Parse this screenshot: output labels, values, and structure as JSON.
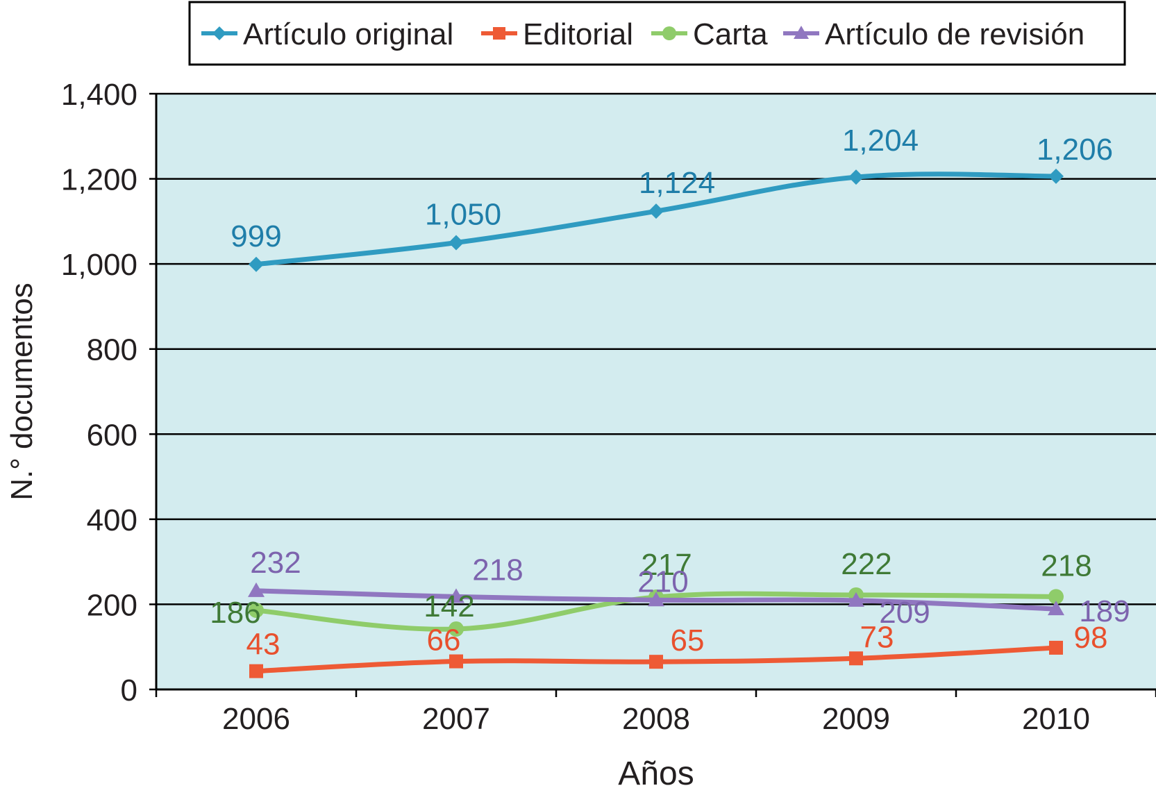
{
  "chart_data": {
    "type": "line",
    "title": "",
    "xlabel": "Años",
    "ylabel": "N.° documentos",
    "categories": [
      "2006",
      "2007",
      "2008",
      "2009",
      "2010"
    ],
    "ylim": [
      0,
      1400
    ],
    "yticks": [
      0,
      200,
      400,
      600,
      800,
      1000,
      1200,
      1400
    ],
    "ytick_labels": [
      "0",
      "200",
      "400",
      "600",
      "800",
      "1,000",
      "1,200",
      "1,400"
    ],
    "grid": true,
    "legend_position": "top",
    "plot_background": "#d3ecef",
    "series": [
      {
        "name": "Artículo original",
        "values": [
          999,
          1050,
          1124,
          1204,
          1206
        ],
        "labels": [
          "999",
          "1,050",
          "1,124",
          "1,204",
          "1,206"
        ],
        "color": "#2f9bc1",
        "label_color": "#1f7ea9",
        "marker": "diamond"
      },
      {
        "name": "Editorial",
        "values": [
          43,
          66,
          65,
          73,
          98
        ],
        "labels": [
          "43",
          "66",
          "65",
          "73",
          "98"
        ],
        "color": "#ee5a35",
        "label_color": "#e8502d",
        "marker": "square"
      },
      {
        "name": "Carta",
        "values": [
          186,
          142,
          217,
          222,
          218
        ],
        "labels": [
          "186",
          "142",
          "217",
          "222",
          "218"
        ],
        "color": "#8fcc6a",
        "label_color": "#3f7a36",
        "marker": "circle"
      },
      {
        "name": "Artículo de revisión",
        "values": [
          232,
          218,
          210,
          209,
          189
        ],
        "labels": [
          "232",
          "218",
          "210",
          "209",
          "189"
        ],
        "color": "#9077c0",
        "label_color": "#7d64ae",
        "marker": "triangle"
      }
    ]
  }
}
